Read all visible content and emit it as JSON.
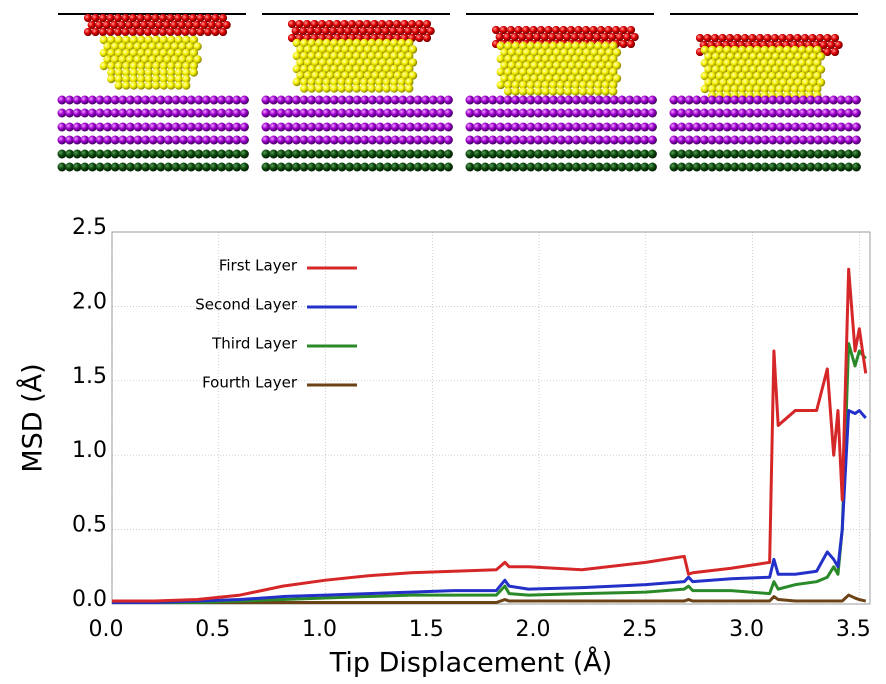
{
  "chart_data": {
    "type": "line",
    "xlabel": "Tip Displacement (Å)",
    "ylabel": "MSD (Å)",
    "x": [
      0,
      0.2,
      0.4,
      0.6,
      0.8,
      1.0,
      1.2,
      1.4,
      1.6,
      1.8,
      1.84,
      1.86,
      1.95,
      2.2,
      2.5,
      2.68,
      2.7,
      2.72,
      2.9,
      3.08,
      3.1,
      3.12,
      3.2,
      3.3,
      3.35,
      3.38,
      3.4,
      3.42,
      3.45,
      3.48,
      3.5,
      3.53
    ],
    "series": [
      {
        "name": "First Layer",
        "color": "#d62728",
        "values": [
          0.02,
          0.02,
          0.03,
          0.06,
          0.12,
          0.16,
          0.19,
          0.21,
          0.22,
          0.23,
          0.28,
          0.25,
          0.25,
          0.23,
          0.28,
          0.32,
          0.2,
          0.21,
          0.24,
          0.28,
          1.7,
          1.2,
          1.3,
          1.3,
          1.58,
          1.0,
          1.3,
          0.7,
          2.25,
          1.7,
          1.85,
          1.55
        ]
      },
      {
        "name": "Second Layer",
        "color": "#2431c8",
        "values": [
          0.01,
          0.01,
          0.02,
          0.03,
          0.05,
          0.06,
          0.07,
          0.08,
          0.09,
          0.09,
          0.16,
          0.12,
          0.1,
          0.11,
          0.13,
          0.15,
          0.18,
          0.15,
          0.17,
          0.18,
          0.3,
          0.2,
          0.2,
          0.22,
          0.35,
          0.3,
          0.25,
          0.5,
          1.3,
          1.28,
          1.3,
          1.25
        ]
      },
      {
        "name": "Third Layer",
        "color": "#2a8a2a",
        "values": [
          0.01,
          0.01,
          0.01,
          0.02,
          0.03,
          0.04,
          0.05,
          0.06,
          0.06,
          0.06,
          0.12,
          0.07,
          0.06,
          0.07,
          0.08,
          0.1,
          0.12,
          0.09,
          0.09,
          0.07,
          0.15,
          0.1,
          0.13,
          0.15,
          0.18,
          0.25,
          0.2,
          0.5,
          1.75,
          1.6,
          1.7,
          1.65
        ]
      },
      {
        "name": "Fourth Layer",
        "color": "#6b4316",
        "values": [
          0.01,
          0.01,
          0.01,
          0.01,
          0.01,
          0.01,
          0.01,
          0.01,
          0.01,
          0.01,
          0.03,
          0.02,
          0.02,
          0.02,
          0.02,
          0.02,
          0.03,
          0.02,
          0.02,
          0.02,
          0.05,
          0.03,
          0.02,
          0.02,
          0.02,
          0.02,
          0.02,
          0.02,
          0.06,
          0.04,
          0.03,
          0.02
        ]
      }
    ],
    "xlim": [
      0,
      3.55
    ],
    "ylim": [
      0,
      2.5
    ],
    "xticks": [
      {
        "value": 0,
        "label": "0.0"
      },
      {
        "value": 0.5,
        "label": "0.5"
      },
      {
        "value": 1,
        "label": "1.0"
      },
      {
        "value": 1.5,
        "label": "1.5"
      },
      {
        "value": 2,
        "label": "2.0"
      },
      {
        "value": 2.5,
        "label": "2.5"
      },
      {
        "value": 3,
        "label": "3.0"
      },
      {
        "value": 3.5,
        "label": "3.5"
      }
    ],
    "yticks": [
      {
        "value": 0,
        "label": "0.0"
      },
      {
        "value": 0.5,
        "label": "0.5"
      },
      {
        "value": 1,
        "label": "1.0"
      },
      {
        "value": 1.5,
        "label": "1.5"
      },
      {
        "value": 2,
        "label": "2.0"
      },
      {
        "value": 2.5,
        "label": "2.5"
      }
    ],
    "grid": true,
    "legend": "upper left"
  }
}
